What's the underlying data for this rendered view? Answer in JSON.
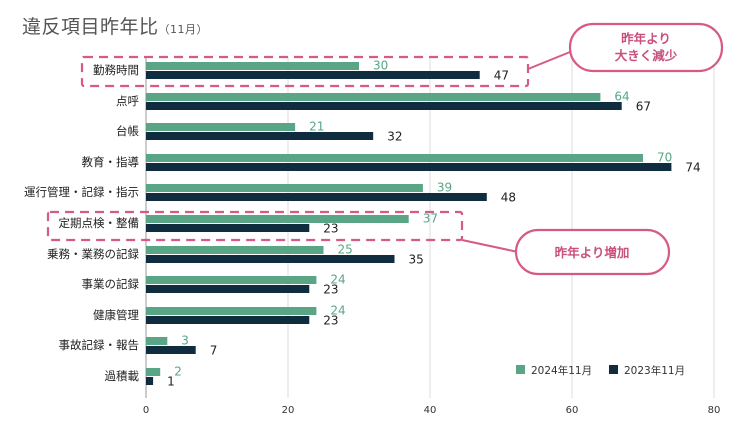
{
  "title": {
    "main": "違反項目昨年比",
    "sub": "（11月）"
  },
  "colors": {
    "series2024": "#59a585",
    "series2023": "#0f2d3f",
    "highlight": "#d65a86"
  },
  "callouts": [
    {
      "text_lines": [
        "昨年より",
        "大きく減少"
      ],
      "target": "勤務時間"
    },
    {
      "text_lines": [
        "昨年より増加"
      ],
      "target": "定期点検・整備"
    }
  ],
  "chart_data": {
    "type": "bar",
    "orientation": "horizontal",
    "categories": [
      "勤務時間",
      "点呼",
      "台帳",
      "教育・指導",
      "運行管理・記録・指示",
      "定期点検・整備",
      "乗務・業務の記録",
      "事業の記録",
      "健康管理",
      "事故記録・報告",
      "過積載"
    ],
    "series": [
      {
        "name": "2024年11月",
        "values": [
          30,
          64,
          21,
          70,
          39,
          37,
          25,
          24,
          24,
          3,
          2
        ]
      },
      {
        "name": "2023年11月",
        "values": [
          47,
          67,
          32,
          74,
          48,
          23,
          35,
          23,
          23,
          7,
          1
        ]
      }
    ],
    "xlim": [
      0,
      80
    ],
    "xticks": [
      0,
      20,
      40,
      60,
      80
    ],
    "grid": true,
    "legend": "bottom-right",
    "highlighted_categories": [
      "勤務時間",
      "定期点検・整備"
    ]
  }
}
